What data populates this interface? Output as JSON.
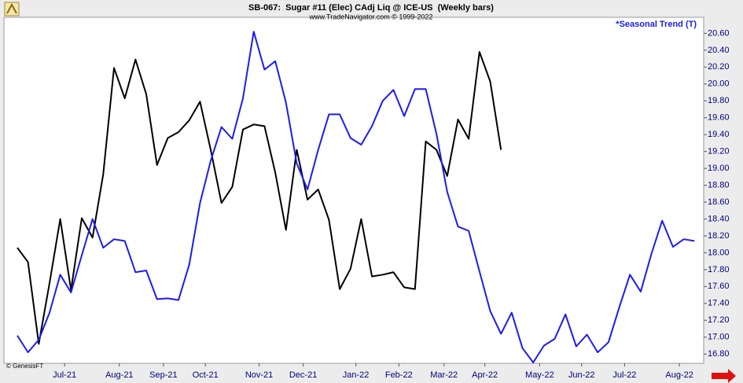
{
  "chart_data": {
    "type": "line",
    "title": "SB-067:  Sugar #11 (Elec) CAdj Liq @ ICE-US  (Weekly bars)",
    "subtitle": "www.TradeNavigator.com © 1999-2022",
    "source": "© GenesisFT",
    "xlim": [
      -1.24,
      63.86
    ],
    "xticks": [
      {
        "value": 4.4,
        "label": "Jul-21"
      },
      {
        "value": 9.5,
        "label": "Aug-21"
      },
      {
        "value": 13.6,
        "label": "Sep-21"
      },
      {
        "value": 17.5,
        "label": "Oct-21"
      },
      {
        "value": 22.5,
        "label": "Nov-21"
      },
      {
        "value": 26.6,
        "label": "Dec-21"
      },
      {
        "value": 31.5,
        "label": "Jan-22"
      },
      {
        "value": 35.5,
        "label": "Feb-22"
      },
      {
        "value": 39.7,
        "label": "Mar-22"
      },
      {
        "value": 43.5,
        "label": "Apr-22"
      },
      {
        "value": 48.6,
        "label": "May-22"
      },
      {
        "value": 52.5,
        "label": "Jun-22"
      },
      {
        "value": 56.5,
        "label": "Jul-22"
      },
      {
        "value": 61.6,
        "label": "Aug-22"
      }
    ],
    "ylim": [
      16.69,
      20.79
    ],
    "yticks": [
      {
        "value": 16.8,
        "label": "16.80"
      },
      {
        "value": 17.0,
        "label": "17.00"
      },
      {
        "value": 17.2,
        "label": "17.20"
      },
      {
        "value": 17.4,
        "label": "17.40"
      },
      {
        "value": 17.6,
        "label": "17.60"
      },
      {
        "value": 17.8,
        "label": "17.80"
      },
      {
        "value": 18.0,
        "label": "18.00"
      },
      {
        "value": 18.2,
        "label": "18.20"
      },
      {
        "value": 18.4,
        "label": "18.40"
      },
      {
        "value": 18.6,
        "label": "18.60"
      },
      {
        "value": 18.8,
        "label": "18.80"
      },
      {
        "value": 19.0,
        "label": "19.00"
      },
      {
        "value": 19.2,
        "label": "19.20"
      },
      {
        "value": 19.4,
        "label": "19.40"
      },
      {
        "value": 19.6,
        "label": "19.60"
      },
      {
        "value": 19.8,
        "label": "19.80"
      },
      {
        "value": 20.0,
        "label": "20.00"
      },
      {
        "value": 20.2,
        "label": "20.20"
      },
      {
        "value": 20.4,
        "label": "20.40"
      },
      {
        "value": 20.6,
        "label": "20.60"
      }
    ],
    "grid": false,
    "series": [
      {
        "color": "#000000",
        "x": [
          0,
          1,
          2,
          3,
          4,
          5,
          6,
          7,
          8,
          9,
          10,
          11,
          12,
          13,
          14,
          15,
          16,
          17,
          18,
          19,
          20,
          21,
          22,
          23,
          24,
          25,
          26,
          27,
          28,
          29,
          30,
          31,
          32,
          33,
          34,
          35,
          36,
          37,
          38,
          39,
          40,
          41,
          42,
          43,
          44,
          45
        ],
        "values": [
          18.06,
          17.89,
          16.92,
          17.64,
          18.4,
          17.56,
          18.41,
          18.18,
          18.93,
          20.19,
          19.83,
          20.29,
          19.88,
          19.04,
          19.36,
          19.43,
          19.57,
          19.79,
          19.22,
          18.59,
          18.78,
          19.46,
          19.52,
          19.5,
          18.95,
          18.27,
          19.22,
          18.63,
          18.75,
          18.39,
          17.57,
          17.81,
          18.4,
          17.72,
          17.74,
          17.77,
          17.59,
          17.57,
          19.32,
          19.22,
          18.91,
          19.58,
          19.35,
          20.38,
          20.03,
          19.22
        ]
      },
      {
        "name": "*Seasonal Trend (T)",
        "color": "#1c1cf0",
        "x": [
          0,
          1,
          2,
          3,
          4,
          5,
          6,
          7,
          8,
          9,
          10,
          11,
          12,
          13,
          14,
          15,
          16,
          17,
          18,
          19,
          20,
          21,
          22,
          23,
          24,
          25,
          26,
          27,
          28,
          29,
          30,
          31,
          32,
          33,
          34,
          35,
          36,
          37,
          38,
          39,
          40,
          41,
          42,
          43,
          44,
          45,
          46,
          47,
          48,
          49,
          50,
          51,
          52,
          53,
          54,
          55,
          56,
          57,
          58,
          59,
          60,
          61,
          62,
          63
        ],
        "values": [
          17.02,
          16.82,
          16.97,
          17.29,
          17.74,
          17.53,
          17.97,
          18.4,
          18.06,
          18.16,
          18.14,
          17.77,
          17.79,
          17.45,
          17.46,
          17.44,
          17.86,
          18.59,
          19.09,
          19.49,
          19.35,
          19.83,
          20.62,
          20.17,
          20.27,
          19.78,
          19.06,
          18.75,
          19.22,
          19.64,
          19.64,
          19.36,
          19.28,
          19.5,
          19.8,
          19.93,
          19.62,
          19.94,
          19.94,
          19.41,
          18.72,
          18.31,
          18.26,
          17.78,
          17.31,
          17.04,
          17.29,
          16.87,
          16.7,
          16.9,
          16.98,
          17.27,
          16.89,
          17.03,
          16.82,
          16.94,
          17.35,
          17.74,
          17.54,
          17.99,
          18.38,
          18.07,
          18.16,
          18.14
        ]
      }
    ]
  }
}
